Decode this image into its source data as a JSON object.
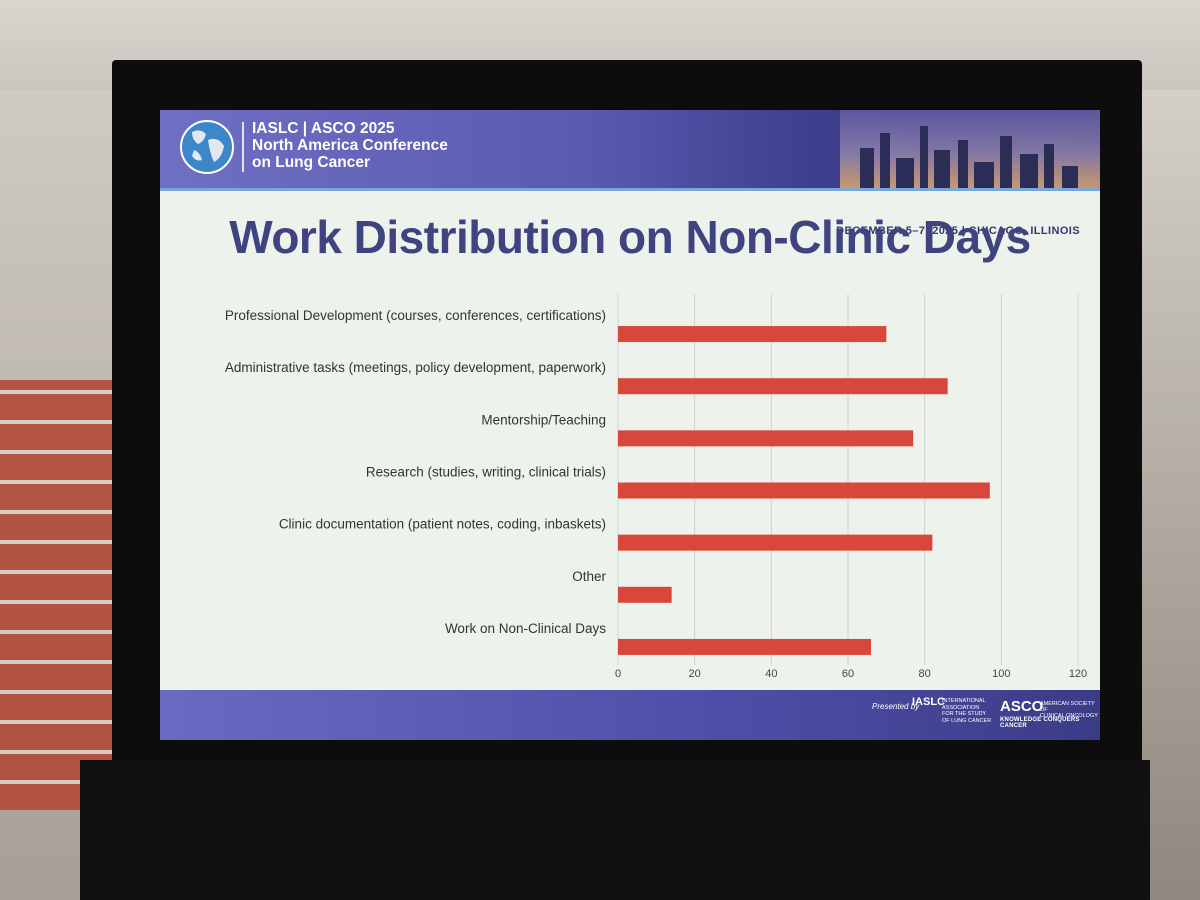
{
  "conference": {
    "title": "IASLC | ASCO 2025\nNorth America Conference\non Lung Cancer",
    "dates": "DECEMBER 5–7, 2025 | CHICAGO, ILLINOIS"
  },
  "slide": {
    "title": "Work Distribution on Non-Clinic Days"
  },
  "footer": {
    "presented_by": "Presented by",
    "iaslc": "IASLC",
    "iaslc_sub": "INTERNATIONAL\nASSOCIATION\nFOR THE STUDY\nOF LUNG CANCER",
    "asco": "ASCO",
    "asco_sub": "AMERICAN SOCIETY OF\nCLINICAL ONCOLOGY",
    "asco_tag": "KNOWLEDGE CONQUERS CANCER"
  },
  "colors": {
    "bar": "#d8473b",
    "grid": "#cfd3cc",
    "title": "#3f4380"
  },
  "chart_data": {
    "type": "bar",
    "orientation": "horizontal",
    "categories": [
      "Professional Development (courses, conferences, certifications)",
      "Administrative tasks (meetings, policy development, paperwork)",
      "Mentorship/Teaching",
      "Research (studies, writing, clinical trials)",
      "Clinic documentation (patient notes, coding, inbaskets)",
      "Other",
      "Work on Non-Clinical Days"
    ],
    "values": [
      70,
      86,
      77,
      97,
      82,
      14,
      66
    ],
    "xlim": [
      0,
      120
    ],
    "xticks": [
      0,
      20,
      40,
      60,
      80,
      100,
      120
    ],
    "grid": true,
    "title": "Work Distribution on Non-Clinic Days"
  }
}
